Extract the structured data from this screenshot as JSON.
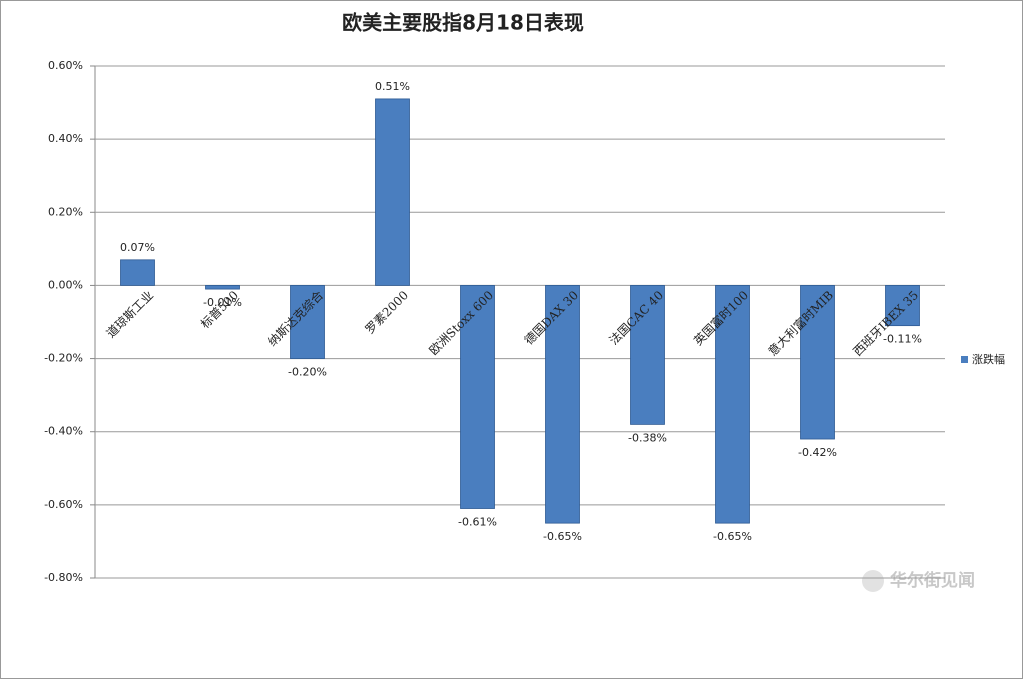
{
  "chart_data": {
    "type": "bar",
    "title": "欧美主要股指8月18日表现",
    "categories": [
      "道琼斯工业",
      "标普500",
      "纳斯达克综合",
      "罗素2000",
      "欧洲Stoxx 600",
      "德国DAX 30",
      "法国CAC 40",
      "英国富时100",
      "意大利富时MIB",
      "西班牙IBEX 35"
    ],
    "series": [
      {
        "name": "涨跌幅",
        "color": "#4a7ebf",
        "values": [
          0.07,
          -0.01,
          -0.2,
          0.51,
          -0.61,
          -0.65,
          -0.38,
          -0.65,
          -0.42,
          -0.11
        ],
        "value_labels": [
          "0.07%",
          "-0.01%",
          "-0.20%",
          "0.51%",
          "-0.61%",
          "-0.65%",
          "-0.38%",
          "-0.65%",
          "-0.42%",
          "-0.11%"
        ]
      }
    ],
    "ylim": [
      -0.8,
      0.6
    ],
    "yticks": [
      {
        "value": -0.8,
        "label": "-0.80%"
      },
      {
        "value": -0.6,
        "label": "-0.60%"
      },
      {
        "value": -0.4,
        "label": "-0.40%"
      },
      {
        "value": -0.2,
        "label": "-0.20%"
      },
      {
        "value": 0,
        "label": "0.00%"
      },
      {
        "value": 0.2,
        "label": "0.20%"
      },
      {
        "value": 0.4,
        "label": "0.40%"
      },
      {
        "value": 0.6,
        "label": "0.60%"
      }
    ],
    "grid": true,
    "legend": "right",
    "watermark": "华尔街见闻"
  }
}
